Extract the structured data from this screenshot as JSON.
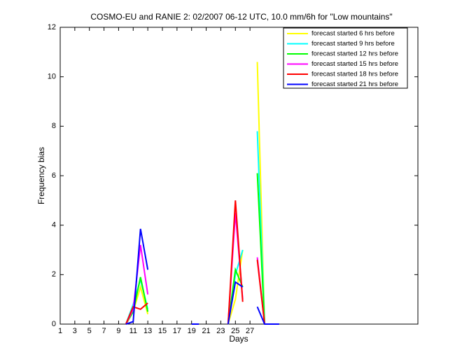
{
  "chart_data": {
    "type": "line",
    "title": "COSMO-EU and RANIE 2: 02/2007 06-12 UTC, 10.0 mm/6h for \"Low mountains\"",
    "x_label": "Days",
    "y_label": "Frequency bias",
    "x": [
      10,
      11,
      12,
      13,
      14,
      19,
      20,
      21,
      24,
      25,
      26,
      27,
      28,
      29,
      30,
      31
    ],
    "xlim": [
      1,
      50
    ],
    "xticks": [
      1,
      3,
      5,
      7,
      9,
      11,
      13,
      15,
      17,
      19,
      21,
      23,
      25,
      27
    ],
    "ylim": [
      0,
      12
    ],
    "yticks": [
      0,
      2,
      4,
      6,
      8,
      10,
      12
    ],
    "legend_position": "upper-right",
    "series": [
      {
        "name": "forecast started 6 hrs before",
        "color": "#ffff00",
        "values": [
          0,
          0.5,
          1.5,
          0.4,
          null,
          null,
          null,
          null,
          0,
          1.0,
          3.0,
          null,
          10.6,
          0,
          null,
          null
        ]
      },
      {
        "name": "forecast started 9 hrs before",
        "color": "#00ffff",
        "values": [
          0,
          0.8,
          1.8,
          0.6,
          null,
          null,
          null,
          null,
          0,
          2.0,
          3.0,
          null,
          7.8,
          0,
          null,
          null
        ]
      },
      {
        "name": "forecast started 12 hrs before",
        "color": "#00ff00",
        "values": [
          0,
          0.5,
          1.9,
          0.5,
          null,
          null,
          null,
          null,
          0,
          2.2,
          1.5,
          null,
          6.1,
          0,
          null,
          null
        ]
      },
      {
        "name": "forecast started 15 hrs before",
        "color": "#ff00ff",
        "values": [
          0,
          0.6,
          3.2,
          1.2,
          null,
          null,
          null,
          null,
          0,
          4.5,
          1.0,
          null,
          2.7,
          0,
          null,
          null
        ]
      },
      {
        "name": "forecast started 18 hrs before",
        "color": "#ff0000",
        "values": [
          0,
          0.7,
          0.6,
          0.85,
          null,
          null,
          null,
          null,
          0,
          5.0,
          0.9,
          null,
          2.6,
          0,
          null,
          null
        ]
      },
      {
        "name": "forecast started 21 hrs before",
        "color": "#0000ff",
        "values": [
          0,
          0.1,
          3.85,
          2.2,
          null,
          0,
          0,
          null,
          0,
          1.7,
          1.5,
          null,
          0.7,
          0,
          0,
          0
        ]
      }
    ]
  }
}
